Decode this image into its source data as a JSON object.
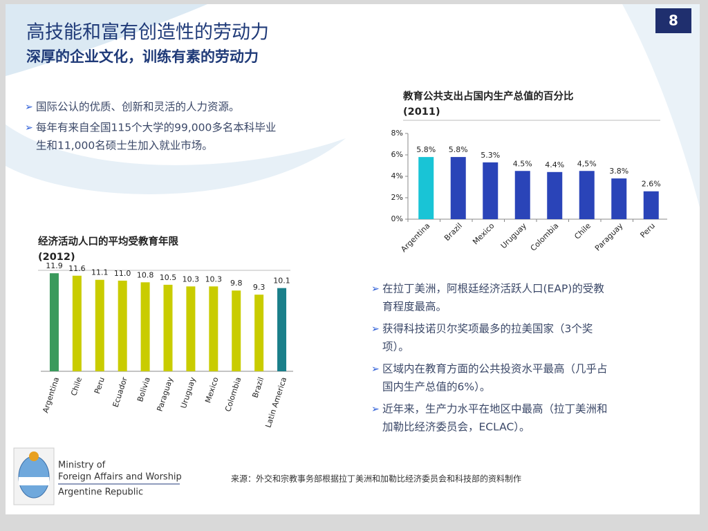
{
  "page_number": "8",
  "title": "高技能和富有创造性的劳动力",
  "subtitle": "深厚的企业文化，训练有素的劳动力",
  "bullets_top": [
    [
      "国际公认的优质、创新和灵活的人力资源。"
    ],
    [
      "每年有来自全国115个大学的99,000多名本科毕业",
      "生和11,000名硕士生加入就业市场。"
    ]
  ],
  "bullets_right": [
    [
      "在拉丁美洲，阿根廷经济活跃人口(EAP)的受教",
      "育程度最高。"
    ],
    [
      "获得科技诺贝尔奖项最多的拉美国家（3个奖",
      "项）。"
    ],
    [
      "区域内在教育方面的公共投资水平最高（几乎占",
      "国内生产总值的6%）。"
    ],
    [
      "近年来，生产力水平在地区中最高（拉丁美洲和",
      "加勒比经济委员会，ECLAC）。"
    ]
  ],
  "source": "来源：外交和宗教事务部根据拉丁美洲和加勒比经济委员会和科技部的资料制作",
  "logo": [
    "Ministry of",
    "Foreign Affairs and Worship",
    "Argentine Republic"
  ],
  "chart_data": [
    {
      "type": "bar",
      "title": [
        "教育公共支出占国内生产总值的百分比",
        "(2011)"
      ],
      "categories": [
        "Argentina",
        "Brazil",
        "Mexico",
        "Uruguay",
        "Colombia",
        "Chile",
        "Paraguay",
        "Peru"
      ],
      "values": [
        5.8,
        5.8,
        5.3,
        4.5,
        4.4,
        4.5,
        3.8,
        2.6
      ],
      "value_labels": [
        "5.8%",
        "5.8%",
        "5.3%",
        "4.5%",
        "4.4%",
        "4,5%",
        "3.8%",
        "2.6%"
      ],
      "colors": [
        "#19c4d6",
        "#2a44b8",
        "#2a44b8",
        "#2a44b8",
        "#2a44b8",
        "#2a44b8",
        "#2a44b8",
        "#2a44b8"
      ],
      "ylim": [
        0,
        8
      ],
      "yticks": [
        {
          "value": 0,
          "label": "0%"
        },
        {
          "value": 2,
          "label": "2%"
        },
        {
          "value": 4,
          "label": "4%"
        },
        {
          "value": 6,
          "label": "6%"
        },
        {
          "value": 8,
          "label": "8%"
        }
      ]
    },
    {
      "type": "bar",
      "title": [
        "经济活动人口的平均受教育年限",
        "(2012)"
      ],
      "categories": [
        "Argentina",
        "Chile",
        "Peru",
        "Ecuador",
        "Bolivia",
        "Paraguay",
        "Uruguay",
        "Mexico",
        "Colombia",
        "Brazil",
        "Latin America"
      ],
      "values": [
        11.9,
        11.6,
        11.1,
        11.0,
        10.8,
        10.5,
        10.3,
        10.3,
        9.8,
        9.3,
        10.1
      ],
      "value_labels": [
        "11.9",
        "11.6",
        "11.1",
        "11.0",
        "10.8",
        "10.5",
        "10.3",
        "10.3",
        "9.8",
        "9.3",
        "10.1"
      ],
      "colors": [
        "#3a9a5c",
        "#c9cc00",
        "#c9cc00",
        "#c9cc00",
        "#c9cc00",
        "#c9cc00",
        "#c9cc00",
        "#c9cc00",
        "#c9cc00",
        "#c9cc00",
        "#1a7f8a"
      ],
      "ylim": [
        0,
        12
      ]
    }
  ]
}
